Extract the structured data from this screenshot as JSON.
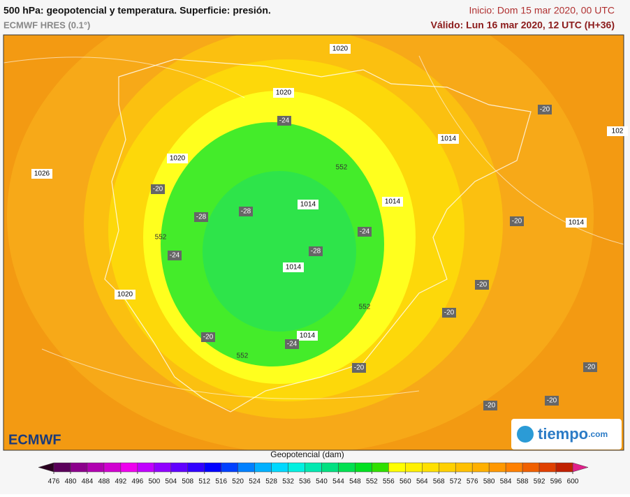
{
  "header": {
    "title": "500 hPa: geopotencial y temperatura. Superficie: presión.",
    "model": "ECMWF HRES (0.1°)",
    "init": "Inicio: Dom 15 mar 2020, 00 UTC",
    "valid": "Válido: Lun 16 mar 2020, 12 UTC (H+36)"
  },
  "map": {
    "pressure_labels": [
      "1020",
      "1020",
      "1026",
      "1020",
      "1014",
      "1014",
      "1014",
      "1014",
      "1014",
      "1020",
      "1014",
      "102"
    ],
    "temperature_labels": [
      "-24",
      "-20",
      "-20",
      "-28",
      "-28",
      "-24",
      "-28",
      "-24",
      "-20",
      "-20",
      "-20",
      "-20",
      "-24",
      "-20",
      "-20",
      "-20",
      "-20"
    ],
    "contour_labels": [
      "552",
      "552",
      "552",
      "552"
    ]
  },
  "logos": {
    "left": "ECMWF",
    "right": "tiempo",
    "right_suffix": ".com"
  },
  "legend": {
    "title": "Geopotencial (dam)",
    "ticks": [
      476,
      480,
      484,
      488,
      492,
      496,
      500,
      504,
      508,
      512,
      516,
      520,
      524,
      528,
      532,
      536,
      540,
      544,
      548,
      552,
      556,
      560,
      564,
      568,
      572,
      576,
      580,
      584,
      588,
      592,
      596,
      600
    ],
    "colors": [
      "#5a005a",
      "#8b008b",
      "#b000b0",
      "#d000d0",
      "#ee00ee",
      "#c000ff",
      "#9000ff",
      "#6000ff",
      "#3000ff",
      "#0000ff",
      "#0040ff",
      "#0080ff",
      "#00b0ff",
      "#00d8ff",
      "#00f0e0",
      "#00e8b0",
      "#00e080",
      "#00e050",
      "#00e020",
      "#30e000",
      "#ffff00",
      "#fff000",
      "#ffe000",
      "#ffd000",
      "#ffc000",
      "#ffb000",
      "#ff9800",
      "#ff8000",
      "#f06000",
      "#e04000",
      "#c02000"
    ],
    "low_color": "#2a0020",
    "high_color": "#e0208a"
  }
}
